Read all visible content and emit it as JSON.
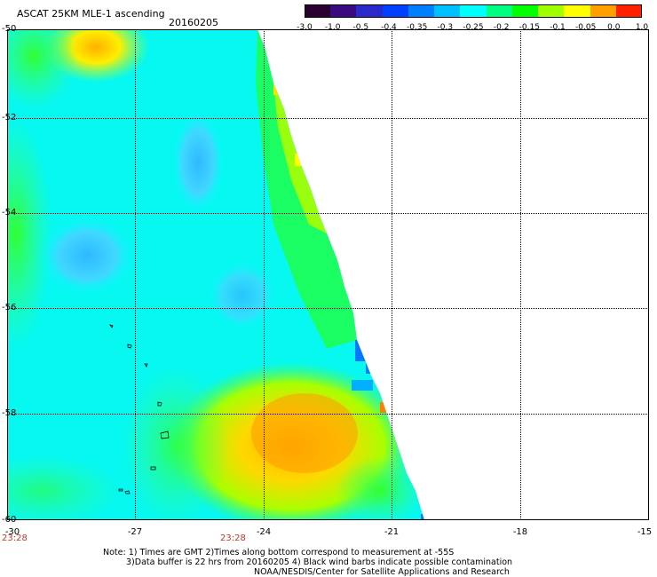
{
  "header": {
    "title": "ASCAT 25KM MLE-1 ascending",
    "date": "20160205"
  },
  "colorbar": {
    "labels": [
      "-3.0",
      "-1.0",
      "-0.5",
      "-0.4",
      "-0.35",
      "-0.3",
      "-0.25",
      "-0.2",
      "-0.15",
      "-0.1",
      "-0.05",
      "0.0",
      "1.0"
    ],
    "colors": [
      "#2a0030",
      "#3a0a80",
      "#2a2acc",
      "#0040ff",
      "#0080ff",
      "#00c0ff",
      "#00ffff",
      "#00ff80",
      "#00ff00",
      "#a0ff00",
      "#ffff00",
      "#ffa000",
      "#ff2000"
    ]
  },
  "axes": {
    "y_labels": [
      "-50",
      "-52",
      "-54",
      "-56",
      "-58",
      "-60"
    ],
    "x_labels": [
      "-30",
      "-27",
      "-24",
      "-21",
      "-18",
      "-15"
    ],
    "time_labels": [
      "23:28",
      "23:28"
    ]
  },
  "notes": {
    "line1": "Note: 1) Times are GMT 2)Times along bottom correspond to measurement at -55S",
    "line2": "3)Data buffer is 22 hrs from 20160205 4) Black wind barbs indicate possible contamination",
    "line3": "NOAA/NESDIS/Center for Satellite Applications and Research"
  }
}
